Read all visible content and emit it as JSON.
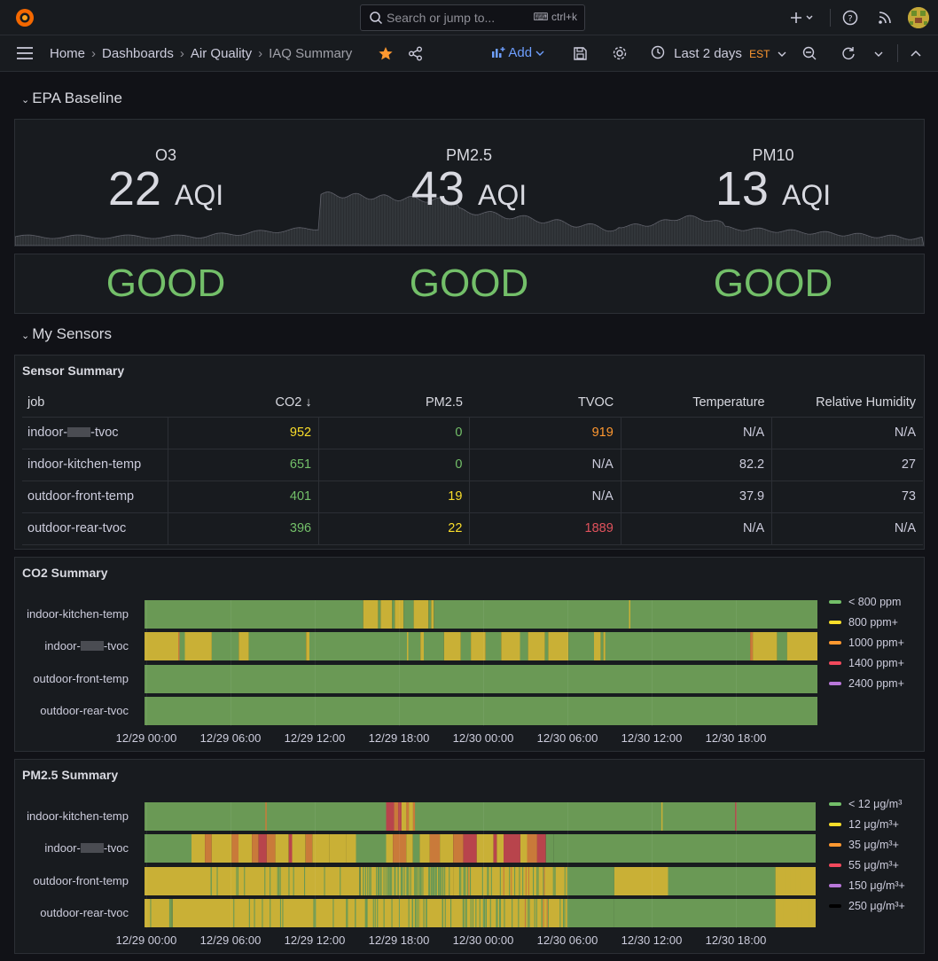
{
  "topbar": {
    "search_placeholder": "Search or jump to...",
    "search_shortcut": "ctrl+k"
  },
  "breadcrumb": [
    "Home",
    "Dashboards",
    "Air Quality",
    "IAQ Summary"
  ],
  "toolbar": {
    "add_label": "Add",
    "time_range": "Last 2 days",
    "timezone": "EST"
  },
  "sections": {
    "epa": "EPA Baseline",
    "sensors": "My Sensors"
  },
  "epa": {
    "stats": [
      {
        "label": "O3",
        "value": "22",
        "unit": "AQI"
      },
      {
        "label": "PM2.5",
        "value": "43",
        "unit": "AQI"
      },
      {
        "label": "PM10",
        "value": "13",
        "unit": "AQI"
      }
    ],
    "status": [
      "GOOD",
      "GOOD",
      "GOOD"
    ]
  },
  "sensor_summary": {
    "title": "Sensor Summary",
    "columns": [
      "job",
      "CO2",
      "PM2.5",
      "TVOC",
      "Temperature",
      "Relative Humidity"
    ],
    "rows": [
      {
        "job_prefix": "indoor-",
        "job_suffix": "-tvoc",
        "redacted": true,
        "co2": "952",
        "pm25": "0",
        "tvoc": "919",
        "temp": "N/A",
        "rh": "N/A",
        "co2_color": "#fade2a",
        "pm25_color": "#73bf69",
        "tvoc_color": "#ff9830"
      },
      {
        "job_prefix": "indoor-kitchen-temp",
        "job_suffix": "",
        "redacted": false,
        "co2": "651",
        "pm25": "0",
        "tvoc": "N/A",
        "temp": "82.2",
        "rh": "27",
        "co2_color": "#73bf69",
        "pm25_color": "#73bf69",
        "tvoc_color": "#ccccdc"
      },
      {
        "job_prefix": "outdoor-front-temp",
        "job_suffix": "",
        "redacted": false,
        "co2": "401",
        "pm25": "19",
        "tvoc": "N/A",
        "temp": "37.9",
        "rh": "73",
        "co2_color": "#73bf69",
        "pm25_color": "#fade2a",
        "tvoc_color": "#ccccdc"
      },
      {
        "job_prefix": "outdoor-rear-tvoc",
        "job_suffix": "",
        "redacted": false,
        "co2": "396",
        "pm25": "22",
        "tvoc": "1889",
        "temp": "N/A",
        "rh": "N/A",
        "co2_color": "#73bf69",
        "pm25_color": "#fade2a",
        "tvoc_color": "#e0525c"
      }
    ]
  },
  "co2_summary": {
    "title": "CO2 Summary",
    "lanes": [
      {
        "prefix": "indoor-kitchen-temp",
        "suffix": "",
        "redacted": false
      },
      {
        "prefix": "indoor-",
        "suffix": "-tvoc",
        "redacted": true
      },
      {
        "prefix": "outdoor-front-temp",
        "suffix": "",
        "redacted": false
      },
      {
        "prefix": "outdoor-rear-tvoc",
        "suffix": "",
        "redacted": false
      }
    ],
    "legend": [
      {
        "label": "< 800 ppm",
        "color": "#73bf69"
      },
      {
        "label": "800 ppm+",
        "color": "#fade2a"
      },
      {
        "label": "1000 ppm+",
        "color": "#ff9830"
      },
      {
        "label": "1400 ppm+",
        "color": "#f2495c"
      },
      {
        "label": "2400 ppm+",
        "color": "#b877d9"
      }
    ]
  },
  "pm25_summary": {
    "title": "PM2.5 Summary",
    "lanes": [
      {
        "prefix": "indoor-kitchen-temp",
        "suffix": "",
        "redacted": false
      },
      {
        "prefix": "indoor-",
        "suffix": "-tvoc",
        "redacted": true
      },
      {
        "prefix": "outdoor-front-temp",
        "suffix": "",
        "redacted": false
      },
      {
        "prefix": "outdoor-rear-tvoc",
        "suffix": "",
        "redacted": false
      }
    ],
    "legend": [
      {
        "label": "< 12 μg/m³",
        "color": "#73bf69"
      },
      {
        "label": "12 μg/m³+",
        "color": "#fade2a"
      },
      {
        "label": "35 μg/m³+",
        "color": "#ff9830"
      },
      {
        "label": "55 μg/m³+",
        "color": "#f2495c"
      },
      {
        "label": "150 μg/m³+",
        "color": "#b877d9"
      },
      {
        "label": "250 μg/m³+",
        "color": "#000000"
      }
    ]
  },
  "x_ticks": [
    "12/29 00:00",
    "12/29 06:00",
    "12/29 12:00",
    "12/29 18:00",
    "12/30 00:00",
    "12/30 06:00",
    "12/30 12:00",
    "12/30 18:00"
  ]
}
